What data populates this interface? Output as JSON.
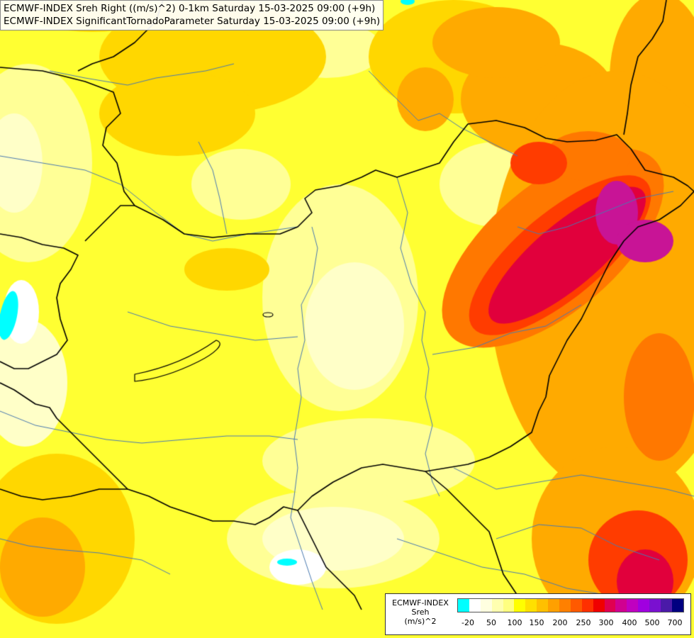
{
  "title": {
    "line1": "ECMWF-INDEX Sreh Right ((m/s)^2) 0-1km Saturday 15-03-2025 09:00 (+9h)",
    "line2": "ECMWF-INDEX SignificantTornadoParameter Saturday 15-03-2025 09:00 (+9h)"
  },
  "legend": {
    "caption_line1": "ECMWF-INDEX",
    "caption_line2": "Sreh",
    "caption_line3": "(m/s)^2",
    "swatch_colors": [
      "#00ffff",
      "#ffffff",
      "#ffffe0",
      "#ffffb0",
      "#ffff80",
      "#ffff00",
      "#ffe000",
      "#ffc000",
      "#ffa000",
      "#ff8000",
      "#ff5a00",
      "#ff3000",
      "#f00000",
      "#e00050",
      "#d00090",
      "#c000c0",
      "#a000e0",
      "#7a10d0",
      "#4a1aa8",
      "#000080"
    ],
    "labels": [
      "-20",
      "50",
      "100",
      "150",
      "200",
      "250",
      "300",
      "400",
      "500",
      "700"
    ]
  },
  "field_colors": {
    "pale": "#ffffc8",
    "light": "#ffff96",
    "yellow": "#ffff32",
    "gold": "#ffd700",
    "orange": "#ffaa00",
    "dark_orange": "#ff7800",
    "red": "#ff3c00",
    "crimson": "#e1003c",
    "magenta": "#c81496",
    "cyan": "#00ffff",
    "white": "#ffffff"
  },
  "line_colors": {
    "border": "#000000",
    "river": "#4a7ab0"
  }
}
